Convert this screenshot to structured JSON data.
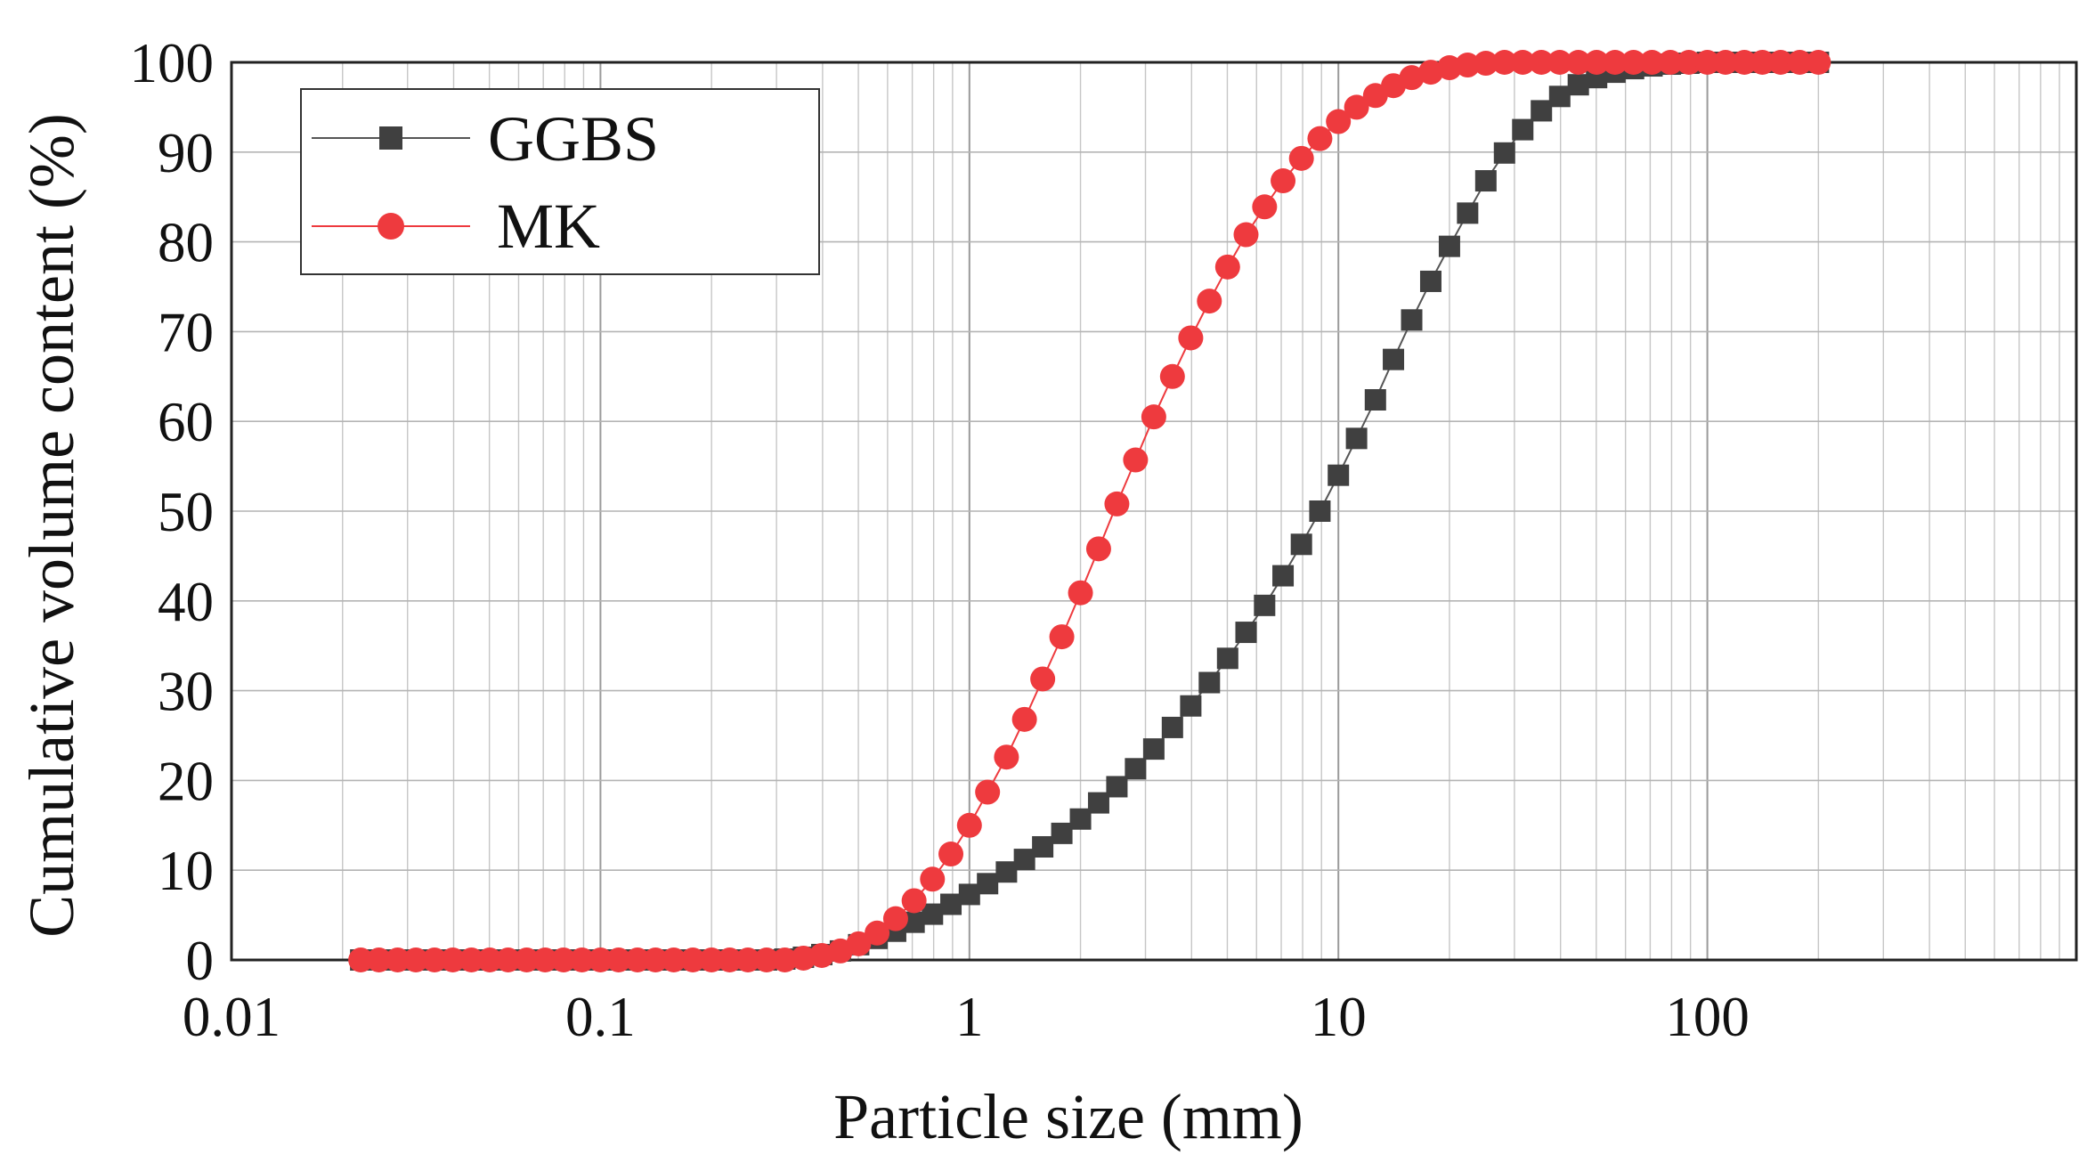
{
  "chart_data": {
    "type": "line",
    "title": "",
    "xlabel": "Particle size (mm)",
    "ylabel": "Cumulative volume content (%)",
    "xscale": "log",
    "xlim": [
      0.01,
      1000
    ],
    "ylim": [
      0,
      100
    ],
    "x_tick_labels": [
      "0.01",
      "0.1",
      "1",
      "10",
      "100"
    ],
    "x_tick_values": [
      0.01,
      0.1,
      1,
      10,
      100
    ],
    "y_tick_labels": [
      "0",
      "10",
      "20",
      "30",
      "40",
      "50",
      "60",
      "70",
      "80",
      "90",
      "100"
    ],
    "y_tick_values": [
      0,
      10,
      20,
      30,
      40,
      50,
      60,
      70,
      80,
      90,
      100
    ],
    "grid": true,
    "legend_position": "top-left",
    "series": [
      {
        "name": "GGBS",
        "color": "#404040",
        "line_color": "#555555",
        "marker": "square",
        "x": [
          0.0224,
          0.0251,
          0.0282,
          0.0316,
          0.0355,
          0.0398,
          0.0447,
          0.0501,
          0.0562,
          0.0631,
          0.0708,
          0.0794,
          0.0891,
          0.1,
          0.112,
          0.126,
          0.141,
          0.158,
          0.178,
          0.2,
          0.224,
          0.251,
          0.282,
          0.316,
          0.355,
          0.398,
          0.447,
          0.501,
          0.562,
          0.631,
          0.708,
          0.794,
          0.891,
          1.0,
          1.12,
          1.26,
          1.41,
          1.58,
          1.78,
          2.0,
          2.24,
          2.51,
          2.82,
          3.16,
          3.55,
          3.98,
          4.47,
          5.01,
          5.62,
          6.31,
          7.08,
          7.94,
          8.91,
          10.0,
          11.2,
          12.6,
          14.1,
          15.8,
          17.8,
          20.0,
          22.4,
          25.1,
          28.2,
          31.6,
          35.5,
          39.8,
          44.7,
          50.1,
          56.2,
          63.1,
          70.8,
          79.4,
          89.1,
          100,
          112,
          126,
          141,
          158,
          178,
          200
        ],
        "values": [
          0,
          0,
          0,
          0,
          0,
          0,
          0,
          0,
          0,
          0,
          0,
          0,
          0,
          0,
          0,
          0,
          0,
          0,
          0,
          0,
          0,
          0,
          0,
          0.1,
          0.3,
          0.6,
          1.0,
          1.7,
          2.4,
          3.2,
          4.2,
          5.1,
          6.2,
          7.3,
          8.5,
          9.8,
          11.2,
          12.6,
          14.1,
          15.7,
          17.5,
          19.3,
          21.3,
          23.5,
          25.9,
          28.3,
          30.9,
          33.6,
          36.5,
          39.5,
          42.8,
          46.3,
          50.0,
          54.0,
          58.1,
          62.4,
          66.9,
          71.3,
          75.6,
          79.5,
          83.2,
          86.8,
          89.9,
          92.5,
          94.6,
          96.2,
          97.5,
          98.3,
          98.9,
          99.3,
          99.6,
          99.8,
          99.9,
          100,
          100,
          100,
          100,
          100,
          100,
          100
        ]
      },
      {
        "name": "MK",
        "color": "#ee3a3e",
        "line_color": "#ee3a3e",
        "marker": "circle",
        "x": [
          0.0224,
          0.0251,
          0.0282,
          0.0316,
          0.0355,
          0.0398,
          0.0447,
          0.0501,
          0.0562,
          0.0631,
          0.0708,
          0.0794,
          0.0891,
          0.1,
          0.112,
          0.126,
          0.141,
          0.158,
          0.178,
          0.2,
          0.224,
          0.251,
          0.282,
          0.316,
          0.355,
          0.398,
          0.447,
          0.501,
          0.562,
          0.631,
          0.708,
          0.794,
          0.891,
          1.0,
          1.12,
          1.26,
          1.41,
          1.58,
          1.78,
          2.0,
          2.24,
          2.51,
          2.82,
          3.16,
          3.55,
          3.98,
          4.47,
          5.01,
          5.62,
          6.31,
          7.08,
          7.94,
          8.91,
          10.0,
          11.2,
          12.6,
          14.1,
          15.8,
          17.8,
          20.0,
          22.4,
          25.1,
          28.2,
          31.6,
          35.5,
          39.8,
          44.7,
          50.1,
          56.2,
          63.1,
          70.8,
          79.4,
          89.1,
          100,
          112,
          126,
          141,
          158,
          178,
          200
        ],
        "values": [
          0,
          0,
          0,
          0,
          0,
          0,
          0,
          0,
          0,
          0,
          0,
          0,
          0,
          0,
          0,
          0,
          0,
          0,
          0,
          0,
          0,
          0,
          0,
          0,
          0.2,
          0.5,
          1.0,
          1.8,
          3.0,
          4.6,
          6.6,
          9.0,
          11.8,
          15.0,
          18.7,
          22.6,
          26.8,
          31.3,
          36.0,
          40.9,
          45.8,
          50.8,
          55.7,
          60.5,
          65.0,
          69.3,
          73.4,
          77.2,
          80.8,
          83.9,
          86.8,
          89.3,
          91.5,
          93.4,
          95.0,
          96.3,
          97.4,
          98.3,
          98.9,
          99.4,
          99.7,
          99.9,
          100,
          100,
          100,
          100,
          100,
          100,
          100,
          100,
          100,
          100,
          100,
          100,
          100,
          100,
          100,
          100,
          100,
          100
        ]
      }
    ]
  }
}
